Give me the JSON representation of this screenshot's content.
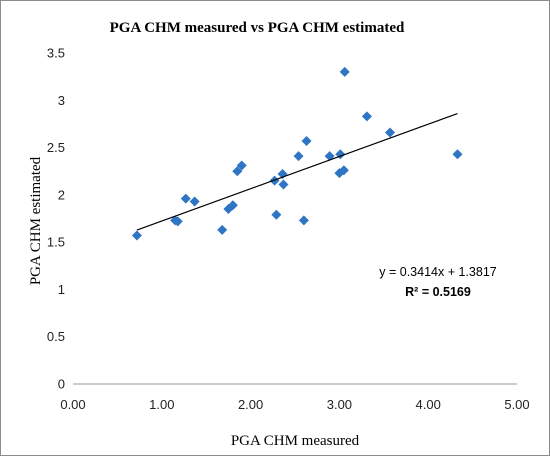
{
  "chart_data": {
    "type": "scatter",
    "title": "PGA CHM measured vs PGA CHM estimated",
    "xlabel": "PGA CHM measured",
    "ylabel": "PGA CHM estimated",
    "xlim": [
      0,
      5
    ],
    "ylim": [
      0,
      3.5
    ],
    "x_ticks": [
      "0.00",
      "1.00",
      "2.00",
      "3.00",
      "4.00",
      "5.00"
    ],
    "y_ticks": [
      "0",
      "0.5",
      "1",
      "1.5",
      "2",
      "2.5",
      "3",
      "3.5"
    ],
    "grid": false,
    "marker": "diamond",
    "color": "#2e75c4",
    "points": [
      {
        "x": 0.72,
        "y": 1.57
      },
      {
        "x": 1.15,
        "y": 1.73
      },
      {
        "x": 1.18,
        "y": 1.72
      },
      {
        "x": 1.27,
        "y": 1.96
      },
      {
        "x": 1.37,
        "y": 1.93
      },
      {
        "x": 1.68,
        "y": 1.63
      },
      {
        "x": 1.75,
        "y": 1.85
      },
      {
        "x": 1.8,
        "y": 1.89
      },
      {
        "x": 1.85,
        "y": 2.25
      },
      {
        "x": 1.9,
        "y": 2.31
      },
      {
        "x": 2.27,
        "y": 2.15
      },
      {
        "x": 2.29,
        "y": 1.79
      },
      {
        "x": 2.36,
        "y": 2.22
      },
      {
        "x": 2.37,
        "y": 2.11
      },
      {
        "x": 2.54,
        "y": 2.41
      },
      {
        "x": 2.6,
        "y": 1.73
      },
      {
        "x": 2.63,
        "y": 2.57
      },
      {
        "x": 2.89,
        "y": 2.41
      },
      {
        "x": 3.0,
        "y": 2.23
      },
      {
        "x": 3.01,
        "y": 2.43
      },
      {
        "x": 3.05,
        "y": 2.26
      },
      {
        "x": 3.06,
        "y": 3.3
      },
      {
        "x": 3.31,
        "y": 2.83
      },
      {
        "x": 3.57,
        "y": 2.66
      },
      {
        "x": 4.33,
        "y": 2.43
      }
    ],
    "trendline": {
      "slope": 0.3414,
      "intercept": 1.3817,
      "x_range": [
        0.72,
        4.33
      ]
    },
    "equation": "y = 0.3414x + 1.3817",
    "r_squared": "R² = 0.5169"
  }
}
